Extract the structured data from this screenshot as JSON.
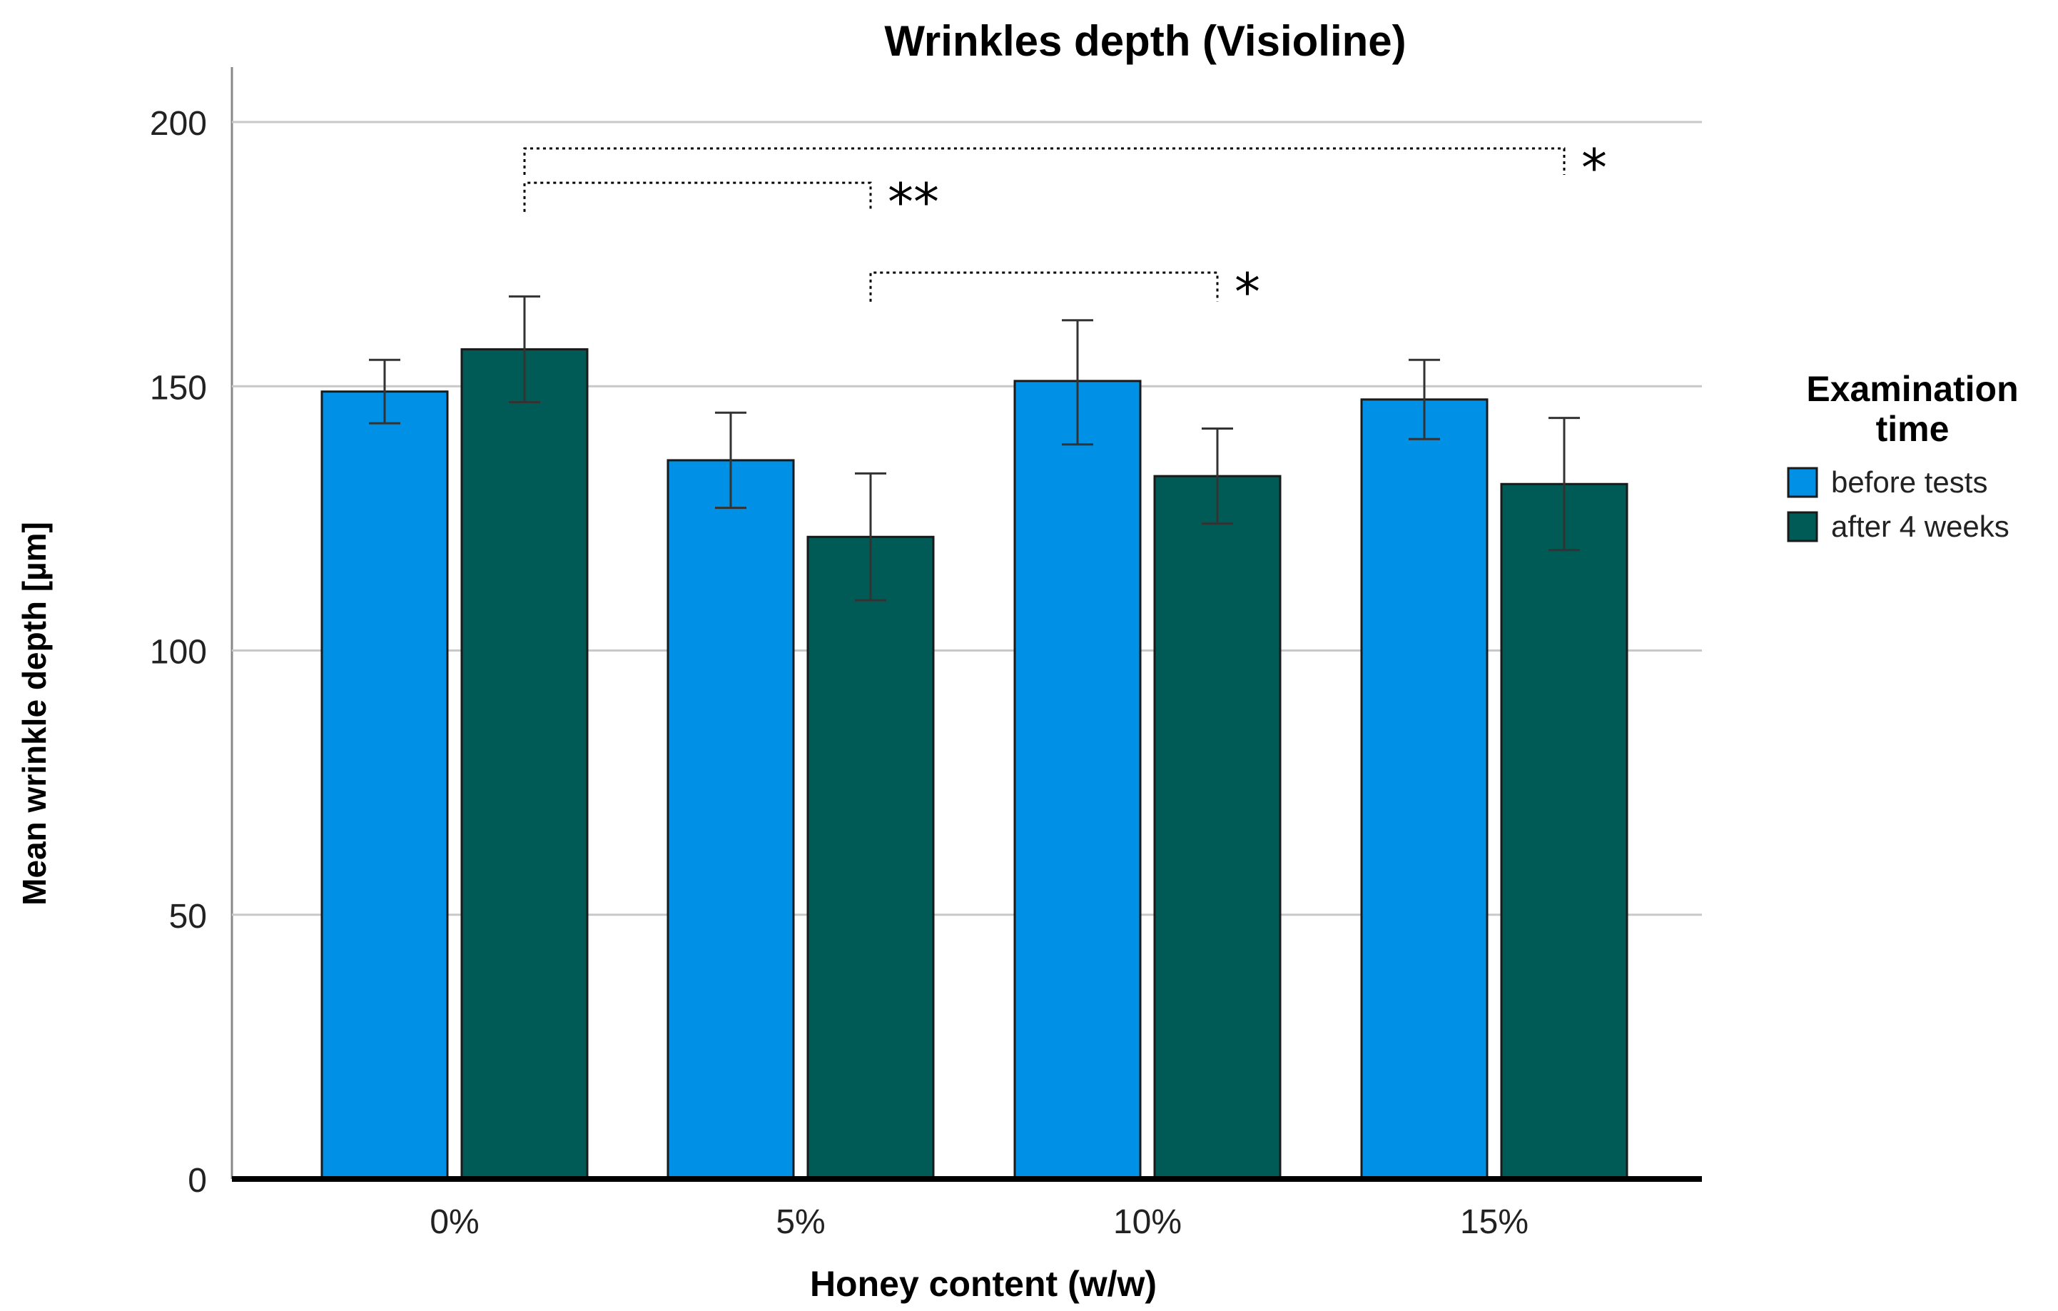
{
  "chart_data": {
    "type": "bar",
    "title": "Wrinkles depth (Visioline)",
    "xlabel": "Honey content (w/w)",
    "ylabel": "Mean wrinkle depth [µm]",
    "ylim": [
      0,
      200
    ],
    "yticks": [
      "0",
      "50",
      "100",
      "150",
      "200"
    ],
    "grid": true,
    "categories": [
      "0%",
      "5%",
      "10%",
      "15%"
    ],
    "series": [
      {
        "name": "before tests",
        "color": "#0090e6",
        "values": [
          149,
          136,
          151,
          147.5
        ],
        "error_low": [
          143,
          127,
          139,
          140
        ],
        "error_high": [
          155,
          145,
          162.5,
          155
        ]
      },
      {
        "name": "after 4 weeks",
        "color": "#005a55",
        "values": [
          157,
          121.5,
          133,
          131.5
        ],
        "error_low": [
          147,
          109.5,
          124,
          119
        ],
        "error_high": [
          167,
          133.5,
          142,
          144
        ]
      }
    ],
    "legend": {
      "title_line1": "Examination",
      "title_line2": "time",
      "position": "right"
    },
    "significance": [
      {
        "from_category": 0,
        "from_series": 1,
        "to_category": 3,
        "to_series": 1,
        "label": "*",
        "level": 195,
        "drop_to": 190
      },
      {
        "from_category": 0,
        "from_series": 1,
        "to_category": 1,
        "to_series": 1,
        "label": "**",
        "level": 188.5,
        "drop_to": 183
      },
      {
        "from_category": 1,
        "from_series": 1,
        "to_category": 2,
        "to_series": 1,
        "label": "*",
        "level": 171.5,
        "drop_to": 166
      }
    ]
  }
}
